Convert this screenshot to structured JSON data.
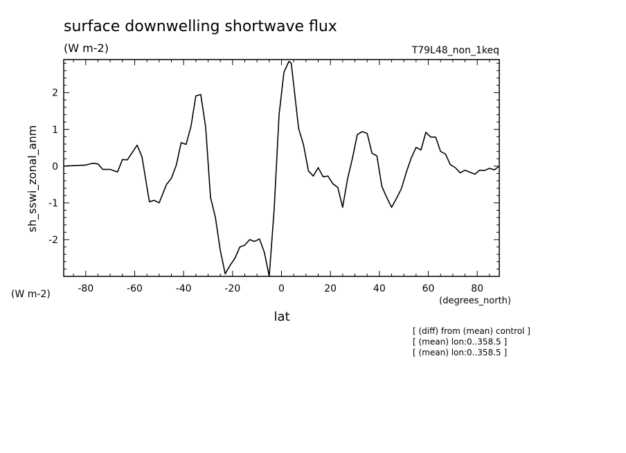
{
  "chart_data": {
    "type": "line",
    "title": "surface downwelling shortwave flux",
    "units": "(W m-2)",
    "run_label": "T79L48_non_1keq",
    "ylabel": "sh_sswi_zonal_anm",
    "y_units": "(W m-2)",
    "xlabel": "lat",
    "x_units": "(degrees_north)",
    "xlim": [
      -89,
      89
    ],
    "ylim": [
      -3.0,
      2.9
    ],
    "x_ticks": [
      -80,
      -60,
      -40,
      -20,
      0,
      20,
      40,
      60,
      80
    ],
    "x_tick_labels": [
      "-80",
      "-60",
      "-40",
      "-20",
      "0",
      "20",
      "40",
      "60",
      "80"
    ],
    "y_ticks": [
      -2,
      -1,
      0,
      1,
      2
    ],
    "y_tick_labels": [
      "-2",
      "-1",
      "0",
      "1",
      "2"
    ],
    "notes": [
      "[ (diff) from (mean) control ]",
      "[ (mean) lon:0..358.5 ]",
      "[ (mean) lon:0..358.5 ]"
    ],
    "grid": false,
    "series": [
      {
        "color": "#000000",
        "x": [
          -89,
          -80,
          -77,
          -75,
          -73,
          -70,
          -67,
          -65,
          -63,
          -59,
          -57,
          -54,
          -52,
          -50,
          -47,
          -45,
          -43,
          -41,
          -39,
          -37,
          -35,
          -33,
          -31,
          -29,
          -27,
          -25,
          -23,
          -21,
          -19,
          -17,
          -15,
          -13,
          -11,
          -9,
          -7,
          -5,
          -3,
          -1,
          1,
          3,
          4,
          7,
          9,
          11,
          13,
          15,
          17,
          19,
          21,
          23,
          25,
          27,
          29,
          31,
          33,
          35,
          37,
          39,
          41,
          43,
          45,
          47,
          49,
          51,
          53,
          55,
          57,
          59,
          61,
          63,
          65,
          67,
          69,
          71,
          73,
          75,
          79,
          81,
          83,
          85,
          87,
          89
        ],
        "y": [
          0.0,
          0.03,
          0.08,
          0.06,
          -0.09,
          -0.09,
          -0.16,
          0.18,
          0.17,
          0.57,
          0.25,
          -0.97,
          -0.93,
          -1.0,
          -0.5,
          -0.33,
          0.03,
          0.64,
          0.59,
          1.08,
          1.91,
          1.95,
          1.06,
          -0.85,
          -1.4,
          -2.3,
          -2.93,
          -2.7,
          -2.5,
          -2.2,
          -2.15,
          -2.0,
          -2.05,
          -1.98,
          -2.35,
          -3.0,
          -1.18,
          1.4,
          2.55,
          2.85,
          2.8,
          1.03,
          0.58,
          -0.13,
          -0.27,
          -0.04,
          -0.29,
          -0.27,
          -0.48,
          -0.58,
          -1.12,
          -0.35,
          0.22,
          0.86,
          0.94,
          0.89,
          0.35,
          0.28,
          -0.55,
          -0.85,
          -1.12,
          -0.88,
          -0.61,
          -0.17,
          0.22,
          0.51,
          0.44,
          0.92,
          0.79,
          0.79,
          0.4,
          0.33,
          0.04,
          -0.04,
          -0.18,
          -0.11,
          -0.22,
          -0.11,
          -0.12,
          -0.06,
          -0.1,
          0.0
        ]
      }
    ]
  }
}
